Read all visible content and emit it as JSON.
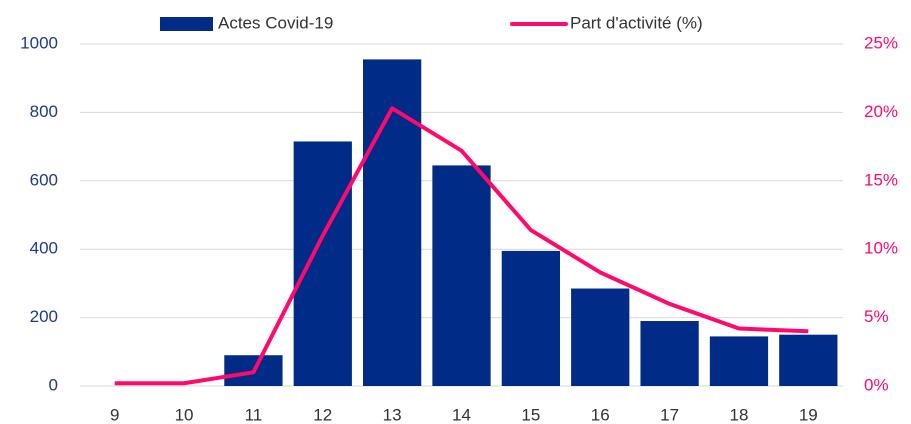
{
  "chart_data": {
    "type": "bar",
    "categories": [
      "9",
      "10",
      "11",
      "12",
      "13",
      "14",
      "15",
      "16",
      "17",
      "18",
      "19"
    ],
    "series": [
      {
        "name": "Actes Covid-19",
        "type": "bar",
        "color": "#002b87",
        "values": [
          0,
          0,
          90,
          715,
          955,
          645,
          395,
          285,
          190,
          145,
          150
        ]
      },
      {
        "name": "Part d'activité (%)",
        "type": "line",
        "axis": "y2",
        "color": "#ff0a6c",
        "values": [
          0.2,
          0.2,
          1.0,
          11,
          20.3,
          17.2,
          11.4,
          8.3,
          6,
          4.2,
          4.0
        ]
      }
    ],
    "ylim": [
      0,
      1000
    ],
    "yticks": [
      0,
      200,
      400,
      600,
      800,
      1000
    ],
    "y2lim": [
      0,
      25
    ],
    "y2ticks": [
      {
        "value": 0,
        "label": "0%"
      },
      {
        "value": 5,
        "label": "5%"
      },
      {
        "value": 10,
        "label": "10%"
      },
      {
        "value": 15,
        "label": "15%"
      },
      {
        "value": 20,
        "label": "20%"
      },
      {
        "value": 25,
        "label": "25%"
      }
    ],
    "grid": true
  }
}
